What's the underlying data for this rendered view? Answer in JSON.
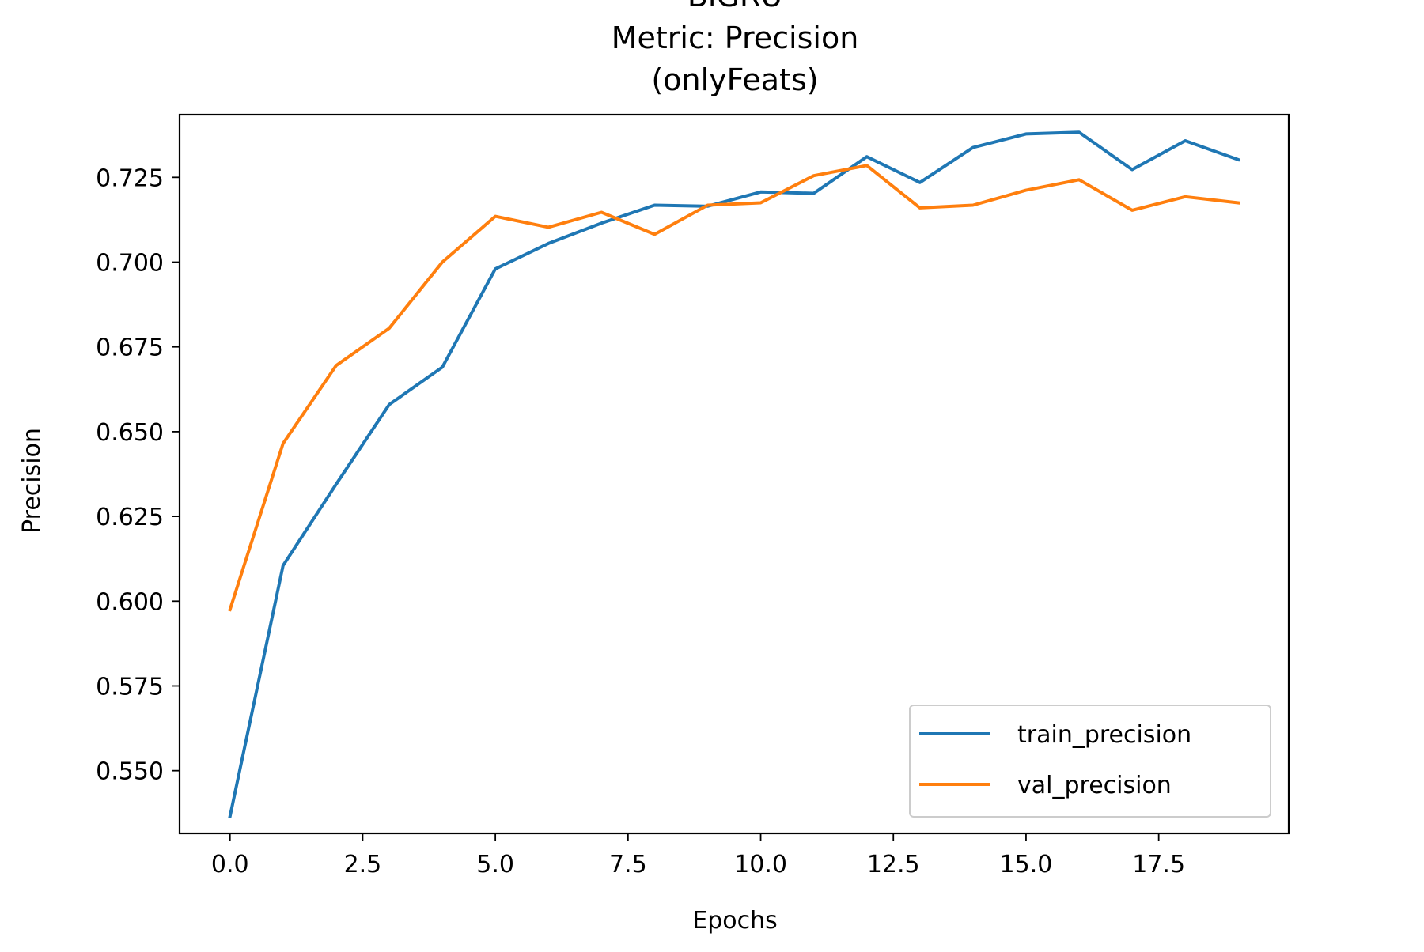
{
  "chart_data": {
    "type": "line",
    "title_lines": [
      "BiGRU",
      "Metric: Precision",
      "(onlyFeats)"
    ],
    "xlabel": "Epochs",
    "ylabel": "Precision",
    "xlim": [
      -0.95,
      19.95
    ],
    "ylim": [
      0.5315,
      0.7435
    ],
    "xticks": [
      0.0,
      2.5,
      5.0,
      7.5,
      10.0,
      12.5,
      15.0,
      17.5
    ],
    "xtick_labels": [
      "0.0",
      "2.5",
      "5.0",
      "7.5",
      "10.0",
      "12.5",
      "15.0",
      "17.5"
    ],
    "yticks": [
      0.55,
      0.575,
      0.6,
      0.625,
      0.65,
      0.675,
      0.7,
      0.725
    ],
    "ytick_labels": [
      "0.550",
      "0.575",
      "0.600",
      "0.625",
      "0.650",
      "0.675",
      "0.700",
      "0.725"
    ],
    "grid": false,
    "legend_position": "lower-right",
    "x": [
      0,
      1,
      2,
      3,
      4,
      5,
      6,
      7,
      8,
      9,
      10,
      11,
      12,
      13,
      14,
      15,
      16,
      17,
      18,
      19
    ],
    "series": [
      {
        "name": "train_precision",
        "color": "#1f77b4",
        "values": [
          0.5365,
          0.6105,
          0.6345,
          0.658,
          0.669,
          0.698,
          0.7055,
          0.7115,
          0.7168,
          0.7165,
          0.7207,
          0.7203,
          0.7311,
          0.7235,
          0.7338,
          0.7378,
          0.7383,
          0.7273,
          0.7358,
          0.7302
        ]
      },
      {
        "name": "val_precision",
        "color": "#ff7f0e",
        "values": [
          0.5975,
          0.6465,
          0.6695,
          0.6805,
          0.7,
          0.7135,
          0.7103,
          0.7147,
          0.7082,
          0.7168,
          0.7175,
          0.7255,
          0.7285,
          0.716,
          0.7168,
          0.7212,
          0.7243,
          0.7153,
          0.7193,
          0.7175
        ]
      }
    ]
  }
}
